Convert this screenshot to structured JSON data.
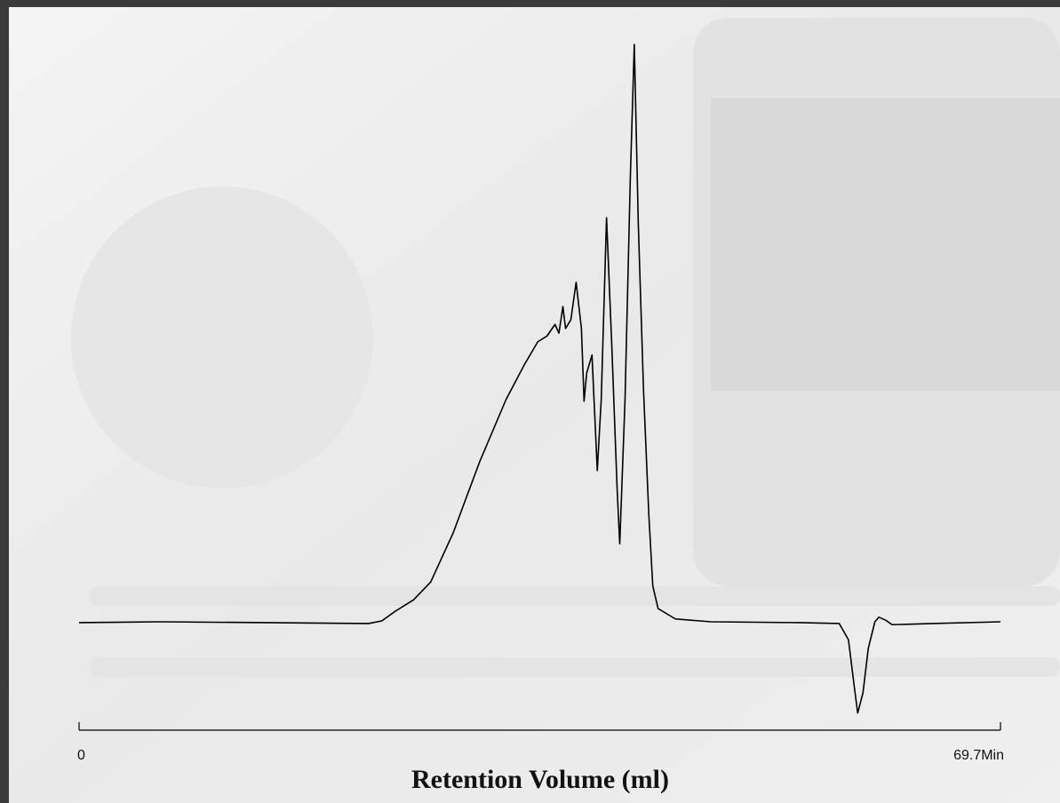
{
  "chart_data": {
    "type": "line",
    "x_label": "Retention Volume (ml)",
    "xlim": [
      0,
      69.7
    ],
    "xticks": [
      0,
      {
        "value": 69.7,
        "label": "69.7Min"
      }
    ],
    "ylim": [
      -18,
      101
    ],
    "color": "#000000",
    "x": [
      0,
      6.1,
      14.1,
      21.9,
      22.9,
      23.9,
      25.3,
      26.6,
      28.3,
      30.3,
      32.3,
      33.7,
      34.7,
      35.4,
      35.7,
      36.0,
      36.3,
      36.6,
      36.8,
      37.2,
      37.6,
      38.0,
      38.2,
      38.4,
      38.8,
      39.2,
      39.5,
      39.9,
      40.3,
      40.7,
      40.9,
      41.3,
      41.7,
      42.0,
      42.3,
      42.7,
      43.1,
      43.4,
      43.8,
      45.1,
      47.8,
      54.5,
      57.5,
      58.2,
      58.7,
      58.9,
      59.3,
      59.7,
      60.2,
      60.5,
      61.0,
      61.5,
      64.6,
      69.7
    ],
    "values": [
      -0.15,
      0,
      -0.15,
      -0.3,
      0.15,
      1.8,
      3.8,
      6.9,
      15.4,
      27.7,
      38.5,
      44.6,
      48.5,
      49.5,
      50.5,
      51.5,
      50,
      54.6,
      50.8,
      52.3,
      58.8,
      50.8,
      38.2,
      43.1,
      46.2,
      26.2,
      38.5,
      70,
      47.7,
      23.1,
      13.5,
      38.5,
      76.9,
      100,
      69.2,
      40,
      18.5,
      6.2,
      2.3,
      0.5,
      0,
      -0.15,
      -0.3,
      -3.1,
      -12.3,
      -15.8,
      -12.3,
      -4.6,
      0,
      0.8,
      0.3,
      -0.5,
      -0.3,
      0
    ]
  }
}
